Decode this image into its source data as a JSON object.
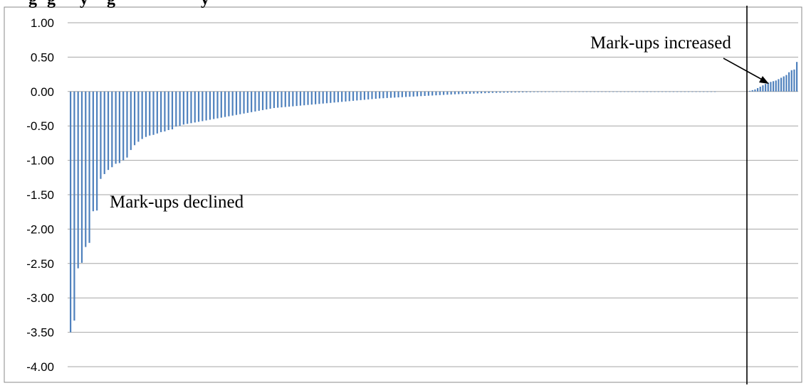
{
  "chart_data": {
    "type": "bar",
    "title": "… Changes in marginal mark-ups during the financial crisis by sector …",
    "title_visible_fragment": "g   …   g   …   y   g   …   y",
    "xlabel": "",
    "ylabel": "",
    "ylim": [
      -4.0,
      1.0
    ],
    "ytick_labels": [
      "1.00",
      "0.50",
      "0.00",
      "-0.50",
      "-1.00",
      "-1.50",
      "-2.00",
      "-2.50",
      "-3.00",
      "-3.50",
      "-4.00"
    ],
    "grid": true,
    "legend": "none",
    "bar_color": "#4f81bd",
    "sorted": "ascending",
    "values": [
      -3.5,
      -3.33,
      -2.57,
      -2.49,
      -2.26,
      -2.2,
      -1.74,
      -1.73,
      -1.27,
      -1.2,
      -1.14,
      -1.1,
      -1.05,
      -1.04,
      -1.0,
      -0.96,
      -0.85,
      -0.78,
      -0.73,
      -0.69,
      -0.66,
      -0.64,
      -0.63,
      -0.61,
      -0.59,
      -0.58,
      -0.56,
      -0.55,
      -0.51,
      -0.5,
      -0.48,
      -0.47,
      -0.46,
      -0.45,
      -0.44,
      -0.43,
      -0.42,
      -0.41,
      -0.4,
      -0.39,
      -0.38,
      -0.37,
      -0.36,
      -0.35,
      -0.34,
      -0.33,
      -0.32,
      -0.31,
      -0.3,
      -0.29,
      -0.28,
      -0.27,
      -0.26,
      -0.25,
      -0.24,
      -0.235,
      -0.23,
      -0.225,
      -0.22,
      -0.215,
      -0.21,
      -0.205,
      -0.2,
      -0.195,
      -0.19,
      -0.185,
      -0.18,
      -0.175,
      -0.17,
      -0.165,
      -0.16,
      -0.155,
      -0.15,
      -0.145,
      -0.14,
      -0.135,
      -0.13,
      -0.125,
      -0.12,
      -0.115,
      -0.11,
      -0.105,
      -0.1,
      -0.097,
      -0.094,
      -0.091,
      -0.088,
      -0.085,
      -0.082,
      -0.079,
      -0.076,
      -0.073,
      -0.07,
      -0.067,
      -0.064,
      -0.061,
      -0.058,
      -0.055,
      -0.052,
      -0.049,
      -0.046,
      -0.043,
      -0.04,
      -0.038,
      -0.036,
      -0.034,
      -0.032,
      -0.03,
      -0.028,
      -0.026,
      -0.024,
      -0.022,
      -0.02,
      -0.019,
      -0.018,
      -0.017,
      -0.016,
      -0.015,
      -0.014,
      -0.013,
      -0.012,
      -0.011,
      -0.01,
      -0.009,
      -0.009,
      -0.008,
      -0.008,
      -0.007,
      -0.007,
      -0.006,
      -0.006,
      -0.006,
      -0.005,
      -0.005,
      -0.005,
      -0.005,
      -0.004,
      -0.004,
      -0.004,
      -0.004,
      -0.004,
      -0.003,
      -0.003,
      -0.003,
      -0.003,
      -0.003,
      -0.003,
      -0.003,
      -0.002,
      -0.002,
      -0.002,
      -0.002,
      -0.002,
      -0.002,
      -0.002,
      -0.002,
      -0.002,
      -0.002,
      -0.002,
      -0.002,
      -0.002,
      -0.002,
      -0.002,
      -0.002,
      -0.002,
      -0.002,
      -0.002,
      -0.002,
      -0.002,
      -0.002,
      -0.002,
      -0.002,
      0.01,
      0.02,
      0.03,
      0.05,
      0.07,
      0.09,
      0.11,
      0.13,
      0.14,
      0.15,
      0.16,
      0.18,
      0.2,
      0.22,
      0.24,
      0.28,
      0.31,
      0.32,
      0.43
    ],
    "annotations": [
      {
        "text": "Mark-ups declined"
      },
      {
        "text": "Mark-ups increased"
      }
    ]
  }
}
